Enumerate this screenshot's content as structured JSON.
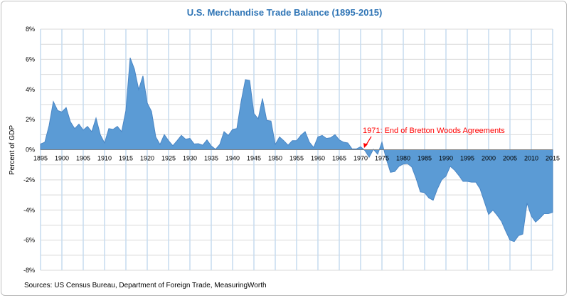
{
  "chart_data": {
    "type": "area",
    "title": "U.S. Merchandise Trade Balance (1895-2015)",
    "ylabel": "Percent of GDP",
    "xlabel": "",
    "source": "Sources: US Census Bureau, Department of Foreign Trade, MeasuringWorth",
    "annotation": {
      "text": "1971: End of Bretton Woods Agreements",
      "x": 1971,
      "y": 0
    },
    "xlim": [
      1895,
      2015
    ],
    "ylim": [
      -8,
      8
    ],
    "xticks": [
      1895,
      1900,
      1905,
      1910,
      1915,
      1920,
      1925,
      1930,
      1935,
      1940,
      1945,
      1950,
      1955,
      1960,
      1965,
      1970,
      1975,
      1980,
      1985,
      1990,
      1995,
      2000,
      2005,
      2010,
      2015
    ],
    "yticks": [
      8,
      6,
      4,
      2,
      0,
      -2,
      -4,
      -6,
      -8
    ],
    "ytick_labels": [
      "8%",
      "6%",
      "4%",
      "2%",
      "0%",
      "-2%",
      "-4%",
      "-6%",
      "-8%"
    ],
    "grid": true,
    "colors": {
      "fill": "#5b9bd5",
      "line": "#4a86c5",
      "title": "#2e74b5",
      "annotation": "#ff0000",
      "grid_v": "#c5dbef",
      "grid_h": "#d9d9d9"
    },
    "x": [
      1895,
      1896,
      1897,
      1898,
      1899,
      1900,
      1901,
      1902,
      1903,
      1904,
      1905,
      1906,
      1907,
      1908,
      1909,
      1910,
      1911,
      1912,
      1913,
      1914,
      1915,
      1916,
      1917,
      1918,
      1919,
      1920,
      1921,
      1922,
      1923,
      1924,
      1925,
      1926,
      1927,
      1928,
      1929,
      1930,
      1931,
      1932,
      1933,
      1934,
      1935,
      1936,
      1937,
      1938,
      1939,
      1940,
      1941,
      1942,
      1943,
      1944,
      1945,
      1946,
      1947,
      1948,
      1949,
      1950,
      1951,
      1952,
      1953,
      1954,
      1955,
      1956,
      1957,
      1958,
      1959,
      1960,
      1961,
      1962,
      1963,
      1964,
      1965,
      1966,
      1967,
      1968,
      1969,
      1970,
      1971,
      1972,
      1973,
      1974,
      1975,
      1976,
      1977,
      1978,
      1979,
      1980,
      1981,
      1982,
      1983,
      1984,
      1985,
      1986,
      1987,
      1988,
      1989,
      1990,
      1991,
      1992,
      1993,
      1994,
      1995,
      1996,
      1997,
      1998,
      1999,
      2000,
      2001,
      2002,
      2003,
      2004,
      2005,
      2006,
      2007,
      2008,
      2009,
      2010,
      2011,
      2012,
      2013,
      2014,
      2015
    ],
    "values": [
      0.38,
      0.5,
      1.6,
      3.2,
      2.6,
      2.5,
      2.8,
      1.85,
      1.4,
      1.7,
      1.3,
      1.55,
      1.2,
      2.1,
      1.0,
      0.45,
      1.4,
      1.35,
      1.55,
      1.2,
      2.6,
      6.1,
      5.35,
      4.0,
      4.9,
      3.1,
      2.55,
      0.85,
      0.35,
      1.0,
      0.6,
      0.27,
      0.6,
      0.95,
      0.7,
      0.75,
      0.38,
      0.4,
      0.3,
      0.65,
      0.25,
      0.03,
      0.35,
      1.2,
      0.95,
      1.35,
      1.4,
      3.2,
      4.65,
      4.6,
      2.4,
      2.05,
      3.4,
      1.95,
      1.9,
      0.35,
      0.85,
      0.6,
      0.3,
      0.6,
      0.6,
      0.95,
      1.2,
      0.5,
      0.15,
      0.85,
      0.95,
      0.75,
      0.8,
      1.0,
      0.65,
      0.5,
      0.45,
      0.05,
      0.05,
      0.2,
      -0.05,
      -0.5,
      0.03,
      -0.3,
      0.5,
      -0.6,
      -1.5,
      -1.45,
      -1.1,
      -0.95,
      -0.92,
      -1.15,
      -1.9,
      -2.8,
      -2.85,
      -3.2,
      -3.35,
      -2.6,
      -2.0,
      -1.75,
      -1.1,
      -1.35,
      -1.7,
      -2.1,
      -2.1,
      -2.15,
      -2.15,
      -2.6,
      -3.45,
      -4.3,
      -4.0,
      -4.35,
      -4.75,
      -5.4,
      -6.0,
      -6.1,
      -5.7,
      -5.6,
      -3.55,
      -4.4,
      -4.8,
      -4.55,
      -4.25,
      -4.25,
      -4.15
    ]
  }
}
